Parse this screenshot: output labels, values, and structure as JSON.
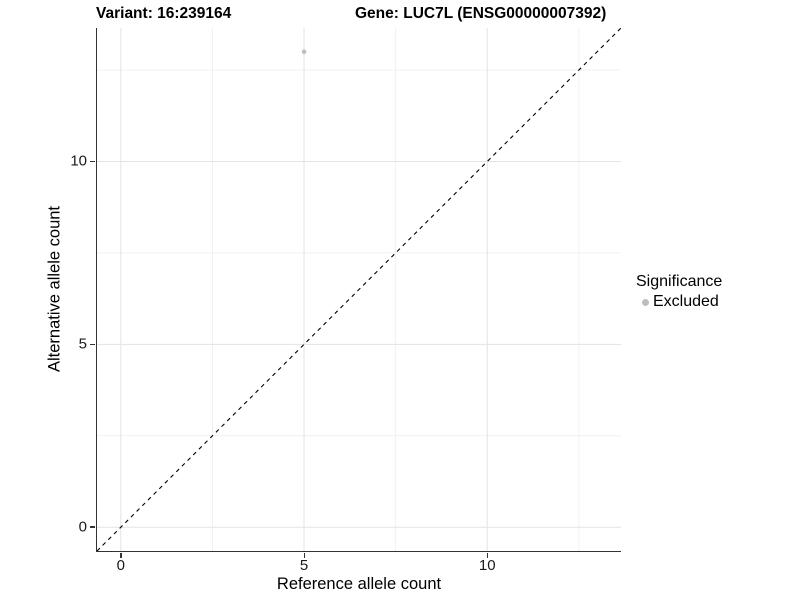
{
  "header": {
    "variant": "Variant: 16:239164",
    "gene": "Gene: LUC7L (ENSG00000007392)"
  },
  "chart_data": {
    "type": "scatter",
    "title": "Variant: 16:239164    Gene: LUC7L (ENSG00000007392)",
    "xlabel": "Reference allele count",
    "ylabel": "Alternative allele count",
    "xlim": [
      -0.65,
      13.65
    ],
    "ylim": [
      -0.65,
      13.65
    ],
    "x_ticks": [
      0,
      5,
      10
    ],
    "x_tick_labels": [
      "0",
      "5",
      "10"
    ],
    "y_ticks": [
      0,
      5,
      10
    ],
    "y_tick_labels": [
      "0",
      "5",
      "10"
    ],
    "x_minor_ticks": [
      2.5,
      7.5,
      12.5
    ],
    "y_minor_ticks": [
      2.5,
      7.5,
      12.5
    ],
    "grid": true,
    "points": [
      {
        "x": 5,
        "y": 13,
        "series": "Excluded"
      }
    ],
    "abline": {
      "slope": 1,
      "intercept": 0,
      "style": "dashed",
      "color": "#000000"
    },
    "legend": {
      "title": "Significance",
      "position": "right",
      "entries": [
        {
          "label": "Excluded",
          "color": "#bebebe",
          "marker": "circle"
        }
      ]
    },
    "colors": {
      "point": "#bebebe",
      "major_grid": "#e3e3e3",
      "minor_grid": "#f0f0f0",
      "axis_line": "#333333",
      "background": "#ffffff"
    }
  }
}
